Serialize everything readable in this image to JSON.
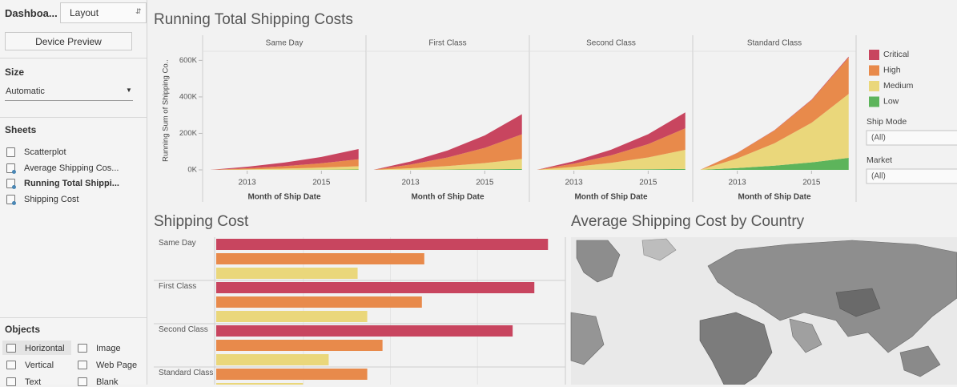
{
  "sidebar": {
    "tabs": [
      "Dashboa...",
      "Layout"
    ],
    "device_preview": "Device Preview",
    "size_header": "Size",
    "size_value": "Automatic",
    "sheets_header": "Sheets",
    "sheets": [
      "Scatterplot",
      "Average Shipping Cos...",
      "Running Total Shippi...",
      "Shipping Cost"
    ],
    "objects_header": "Objects",
    "objects": [
      "Horizontal",
      "Image",
      "Vertical",
      "Web Page",
      "Text",
      "Blank"
    ]
  },
  "filters": [
    {
      "label": "Ship Mode",
      "value": "(All)"
    },
    {
      "label": "Market",
      "value": "(All)"
    }
  ],
  "map": {
    "title": "Average Shipping Cost by Country"
  },
  "chart_data": [
    {
      "type": "area",
      "title": "Running Total Shipping Costs",
      "y_label": "Running Sum of Shipping Co..",
      "x_label": "Month of Ship Date",
      "panels": [
        "Same Day",
        "First Class",
        "Second Class",
        "Standard Class"
      ],
      "x": [
        2012,
        2013,
        2014,
        2015,
        2016
      ],
      "xlim": [
        2011.8,
        2016.2
      ],
      "xticks": [
        2013,
        2015
      ],
      "ylim": [
        0,
        650000
      ],
      "yticks": [
        {
          "value": 0,
          "label": "0K"
        },
        {
          "value": 200000,
          "label": "200K"
        },
        {
          "value": 400000,
          "label": "400K"
        },
        {
          "value": 600000,
          "label": "600K"
        }
      ],
      "series": [
        {
          "name": "Critical",
          "color": "#c8455f",
          "values": [
            [
              0,
              8400,
              19600,
              34720,
              56000
            ],
            [
              0,
              16500,
              38500,
              68200,
              110000
            ],
            [
              0,
              13050,
              30450,
              53940,
              87000
            ],
            [
              0,
              750,
              1750,
              3100,
              5000
            ]
          ]
        },
        {
          "name": "High",
          "color": "#e88a4b",
          "values": [
            [
              0,
              5700,
              13300,
              23560,
              38000
            ],
            [
              0,
              20250,
              47250,
              83700,
              135000
            ],
            [
              0,
              17700,
              41300,
              73160,
              118000
            ],
            [
              0,
              30000,
              70000,
              124000,
              200000
            ]
          ]
        },
        {
          "name": "Medium",
          "color": "#ead77b",
          "values": [
            [
              0,
              2700,
              6300,
              11160,
              18000
            ],
            [
              0,
              8250,
              19250,
              34100,
              55000
            ],
            [
              0,
              15750,
              36750,
              65100,
              105000
            ],
            [
              0,
              52500,
              122500,
              217000,
              350000
            ]
          ]
        },
        {
          "name": "Low",
          "color": "#5db45b",
          "values": [
            [
              0,
              300,
              700,
              1240,
              2000
            ],
            [
              0,
              750,
              1750,
              3100,
              5000
            ],
            [
              0,
              750,
              1750,
              3100,
              5000
            ],
            [
              0,
              9900,
              23100,
              40920,
              66000
            ]
          ]
        }
      ]
    },
    {
      "type": "bar",
      "title": "Shipping Cost",
      "categories": [
        "Same Day",
        "First Class",
        "Second Class",
        "Standard Class"
      ],
      "series": [
        {
          "name": "Critical",
          "color": "#c8455f",
          "values": [
            413,
            396,
            369,
            null
          ]
        },
        {
          "name": "High",
          "color": "#e88a4b",
          "values": [
            259,
            256,
            207,
            188
          ]
        },
        {
          "name": "Medium",
          "color": "#ead77b",
          "values": [
            176,
            188,
            140,
            108
          ]
        }
      ]
    }
  ]
}
